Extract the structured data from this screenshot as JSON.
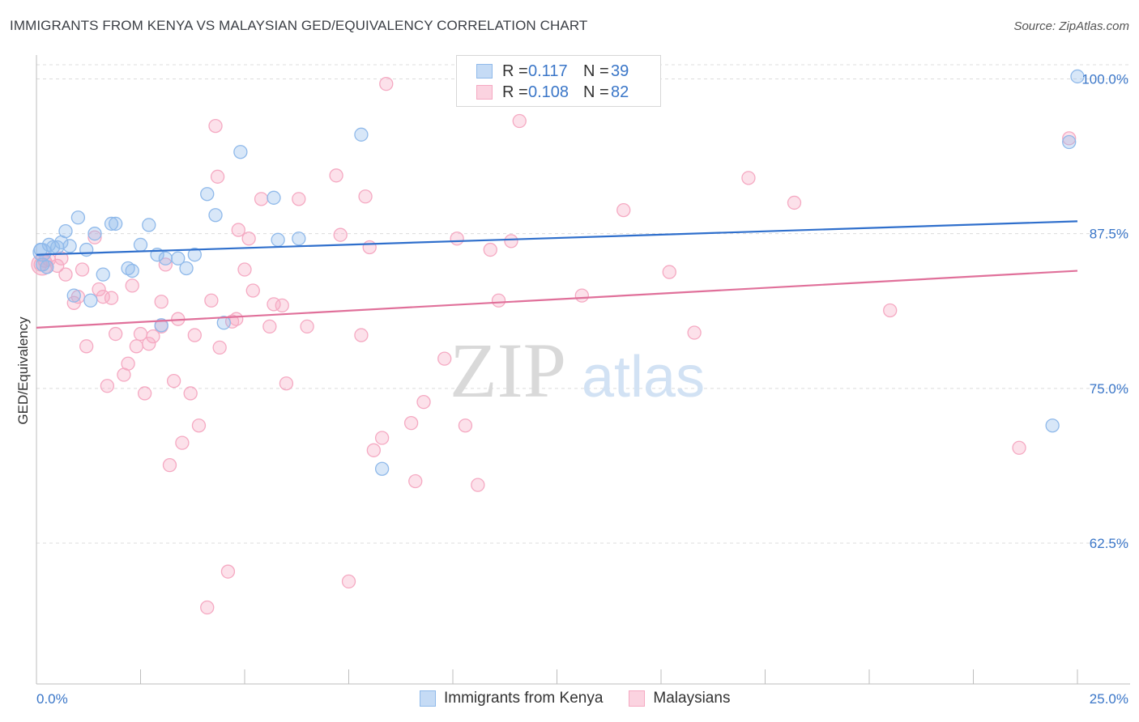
{
  "title": "IMMIGRANTS FROM KENYA VS MALAYSIAN GED/EQUIVALENCY CORRELATION CHART",
  "source": "Source: ZipAtlas.com",
  "watermark": {
    "zip": "ZIP",
    "atlas": "atlas"
  },
  "legend_top": [
    {
      "r_label": "R =",
      "r_value": "0.117",
      "n_label": "N =",
      "n_value": "39",
      "color": "#8fb9ea"
    },
    {
      "r_label": "R =",
      "r_value": "0.108",
      "n_label": "N =",
      "n_value": "82",
      "color": "#f5a9c2"
    }
  ],
  "legend_bottom": [
    {
      "label": "Immigrants from Kenya",
      "color": "#8fb9ea"
    },
    {
      "label": "Malaysians",
      "color": "#f5a9c2"
    }
  ],
  "chart_data": {
    "type": "scatter",
    "title": "IMMIGRANTS FROM KENYA VS MALAYSIAN GED/EQUIVALENCY CORRELATION CHART",
    "xlabel": "",
    "ylabel": "GED/Equivalency",
    "xlim": [
      0,
      25
    ],
    "ylim": [
      50,
      101
    ],
    "x_tick_labels": [
      {
        "value": 0,
        "label": "0.0%"
      },
      {
        "value": 25,
        "label": "25.0%"
      }
    ],
    "y_tick_labels": [
      {
        "value": 100,
        "label": "100.0%"
      },
      {
        "value": 87.5,
        "label": "87.5%"
      },
      {
        "value": 75,
        "label": "75.0%"
      },
      {
        "value": 62.5,
        "label": "62.5%"
      }
    ],
    "grid": "horizontal dashed",
    "series": [
      {
        "name": "Immigrants from Kenya",
        "color": "#8fb9ea",
        "line_color": "#2f6fcc",
        "trend": {
          "x": [
            0,
            25
          ],
          "y": [
            85.8,
            88.5
          ]
        },
        "points": [
          [
            0.1,
            86.2
          ],
          [
            0.3,
            86.6
          ],
          [
            0.4,
            86.4
          ],
          [
            0.5,
            86.4
          ],
          [
            0.7,
            87.7
          ],
          [
            0.8,
            86.5
          ],
          [
            1.0,
            88.8
          ],
          [
            1.2,
            86.2
          ],
          [
            1.4,
            87.5
          ],
          [
            1.6,
            84.2
          ],
          [
            1.8,
            88.3
          ],
          [
            1.9,
            88.3
          ],
          [
            2.2,
            84.7
          ],
          [
            2.3,
            84.5
          ],
          [
            2.5,
            86.6
          ],
          [
            2.7,
            88.2
          ],
          [
            2.9,
            85.8
          ],
          [
            3.1,
            85.5
          ],
          [
            3.4,
            85.5
          ],
          [
            3.6,
            84.7
          ],
          [
            3.8,
            85.8
          ],
          [
            4.1,
            90.7
          ],
          [
            4.3,
            89.0
          ],
          [
            4.5,
            80.3
          ],
          [
            4.9,
            94.1
          ],
          [
            5.7,
            90.4
          ],
          [
            5.8,
            87.0
          ],
          [
            6.3,
            87.1
          ],
          [
            7.8,
            95.5
          ],
          [
            8.3,
            68.5
          ],
          [
            24.4,
            72.0
          ],
          [
            24.8,
            94.9
          ],
          [
            25.0,
            100.2
          ],
          [
            3.0,
            80.1
          ],
          [
            0.9,
            82.5
          ],
          [
            1.3,
            82.1
          ],
          [
            0.15,
            85.0
          ],
          [
            0.25,
            84.8
          ],
          [
            0.6,
            86.8
          ]
        ]
      },
      {
        "name": "Malaysians",
        "color": "#f5a9c2",
        "line_color": "#e0709a",
        "trend": {
          "x": [
            0,
            25
          ],
          "y": [
            79.9,
            84.5
          ]
        },
        "points": [
          [
            0.1,
            85.0
          ],
          [
            0.2,
            85.3
          ],
          [
            0.3,
            85.4
          ],
          [
            0.5,
            84.9
          ],
          [
            0.6,
            85.5
          ],
          [
            0.7,
            84.2
          ],
          [
            0.9,
            81.9
          ],
          [
            1.0,
            82.4
          ],
          [
            1.1,
            84.6
          ],
          [
            1.2,
            78.4
          ],
          [
            1.4,
            87.2
          ],
          [
            1.5,
            83.0
          ],
          [
            1.6,
            82.4
          ],
          [
            1.7,
            75.2
          ],
          [
            1.8,
            82.3
          ],
          [
            1.9,
            79.4
          ],
          [
            2.1,
            76.1
          ],
          [
            2.2,
            77.0
          ],
          [
            2.3,
            83.3
          ],
          [
            2.4,
            78.4
          ],
          [
            2.5,
            79.4
          ],
          [
            2.6,
            74.6
          ],
          [
            2.7,
            78.6
          ],
          [
            2.8,
            79.2
          ],
          [
            3.0,
            80.0
          ],
          [
            3.1,
            85.0
          ],
          [
            3.2,
            68.8
          ],
          [
            3.3,
            75.6
          ],
          [
            3.4,
            80.6
          ],
          [
            3.5,
            70.6
          ],
          [
            3.7,
            74.6
          ],
          [
            3.8,
            79.3
          ],
          [
            3.9,
            72.0
          ],
          [
            4.1,
            57.3
          ],
          [
            4.2,
            82.1
          ],
          [
            4.3,
            96.2
          ],
          [
            4.35,
            92.1
          ],
          [
            4.4,
            78.3
          ],
          [
            4.6,
            60.2
          ],
          [
            4.7,
            80.4
          ],
          [
            4.8,
            80.6
          ],
          [
            4.85,
            87.8
          ],
          [
            5.0,
            84.6
          ],
          [
            5.1,
            87.1
          ],
          [
            5.2,
            82.9
          ],
          [
            5.4,
            90.3
          ],
          [
            5.6,
            80.0
          ],
          [
            5.7,
            81.8
          ],
          [
            5.9,
            81.7
          ],
          [
            6.0,
            75.4
          ],
          [
            6.3,
            90.3
          ],
          [
            6.5,
            80.0
          ],
          [
            7.2,
            92.2
          ],
          [
            7.3,
            87.4
          ],
          [
            7.5,
            59.4
          ],
          [
            7.8,
            79.3
          ],
          [
            7.9,
            90.5
          ],
          [
            8.0,
            86.4
          ],
          [
            8.1,
            70.0
          ],
          [
            8.3,
            71.0
          ],
          [
            9.0,
            72.2
          ],
          [
            9.1,
            67.5
          ],
          [
            9.3,
            73.9
          ],
          [
            9.8,
            77.4
          ],
          [
            10.1,
            87.1
          ],
          [
            10.3,
            72.0
          ],
          [
            10.6,
            67.2
          ],
          [
            10.9,
            86.2
          ],
          [
            11.1,
            82.1
          ],
          [
            11.4,
            86.9
          ],
          [
            11.6,
            96.6
          ],
          [
            13.1,
            82.5
          ],
          [
            14.1,
            89.4
          ],
          [
            15.2,
            84.4
          ],
          [
            15.8,
            79.5
          ],
          [
            17.1,
            92.0
          ],
          [
            18.2,
            90.0
          ],
          [
            20.5,
            81.3
          ],
          [
            23.6,
            70.2
          ],
          [
            24.8,
            95.2
          ],
          [
            8.4,
            99.6
          ],
          [
            3.0,
            82.0
          ]
        ]
      }
    ]
  }
}
